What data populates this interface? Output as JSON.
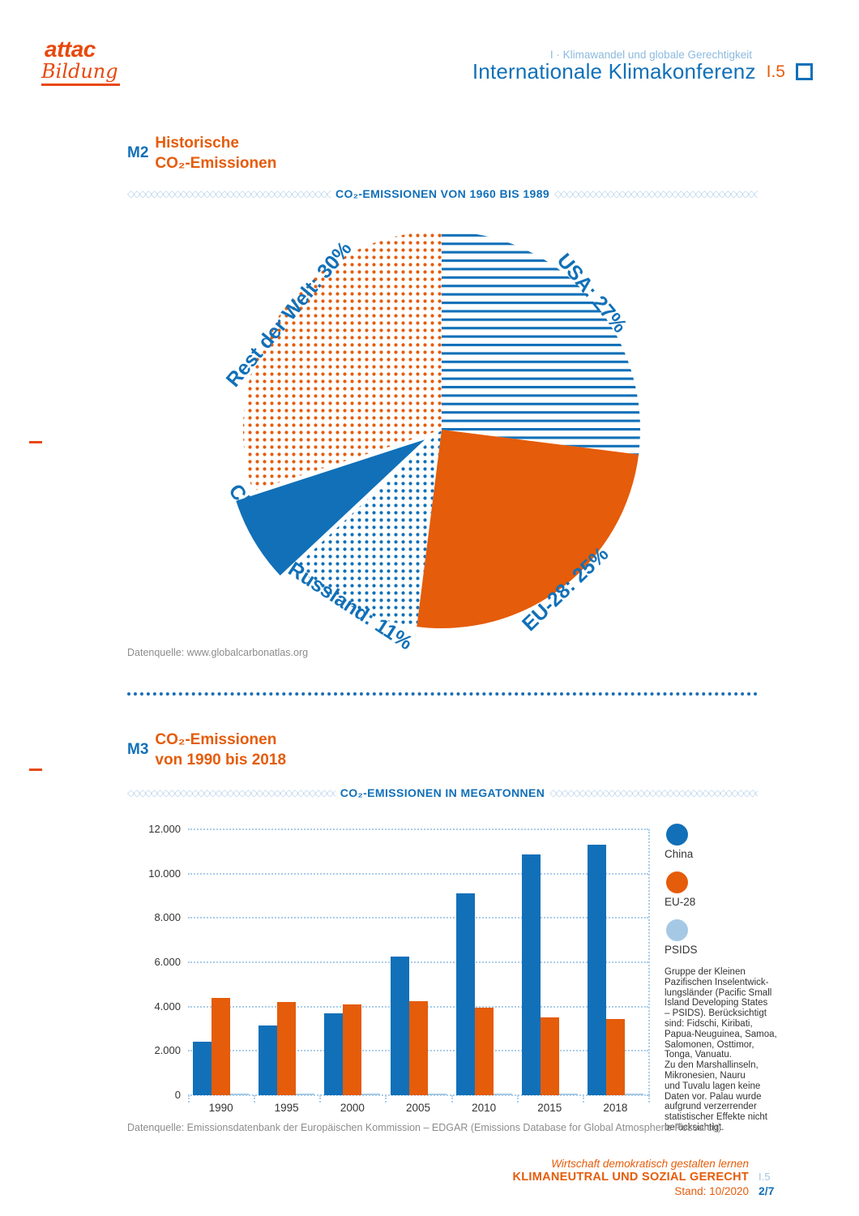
{
  "logo": {
    "top": "attac",
    "bottom": "Bildung"
  },
  "header": {
    "kicker": "I · Klimawandel und globale Gerechtigkeit",
    "title": "Internationale Klimakonferenz",
    "code": "I.5"
  },
  "m2": {
    "tag": "M2",
    "line1": "Historische",
    "line2": "CO₂-Emissionen"
  },
  "m3": {
    "tag": "M3",
    "line1": "CO₂-Emissionen",
    "line2": "von 1990 bis 2018"
  },
  "colors": {
    "blue": "#1170b8",
    "orange": "#e55c0a",
    "light_blue": "#a5c9e5"
  },
  "legend": {
    "items": [
      {
        "name": "China",
        "color": "#1170b8"
      },
      {
        "name": "EU-28",
        "color": "#e55c0a"
      },
      {
        "name": "PSIDS",
        "color": "#a5c9e5"
      }
    ],
    "note": "Gruppe der Kleinen\nPazifischen Inselentwick-\nlungsländer (Pacific Small\nIsland Developing States\n– PSIDS). Berücksichtigt\nsind: Fidschi, Kiribati,\nPapua-Neuguinea, Samoa,\nSalomonen, Osttimor,\nTonga, Vanuatu.\nZu den Marshallinseln,\nMikronesien, Nauru\nund Tuvalu lagen keine\nDaten vor. Palau wurde\naufgrund verzerrender\nstatistischer Effekte nicht\nberücksichtigt."
  },
  "footer": {
    "tagline": "Wirtschaft demokratisch gestalten lernen",
    "series": "KLIMANEUTRAL UND SOZIAL GERECHT",
    "code": "I.5",
    "stand": "Stand: 10/2020",
    "page": "2/7"
  },
  "chart_data": [
    {
      "type": "pie",
      "title": "CO₂-EMISSIONEN VON 1960 BIS 1989",
      "source": "Datenquelle: www.globalcarbonatlas.org",
      "slices": [
        {
          "name": "USA",
          "label": "USA: 27%",
          "value": 27,
          "pattern": "blue-hlines"
        },
        {
          "name": "EU-28",
          "label": "EU-28: 25%",
          "value": 25,
          "pattern": "solid-orange"
        },
        {
          "name": "Russland",
          "label": "Russland: 11%",
          "value": 11,
          "pattern": "blue-dots"
        },
        {
          "name": "China",
          "label": "China: 7%",
          "value": 7,
          "pattern": "solid-blue",
          "exploded": true
        },
        {
          "name": "Rest der Welt",
          "label": "Rest der Welt: 30%",
          "value": 30,
          "pattern": "orange-dots"
        }
      ]
    },
    {
      "type": "bar",
      "title": "CO₂-EMISSIONEN IN MEGATONNEN",
      "source": "Datenquelle: Emissionsdatenbank der Europäischen Kommission – EDGAR (Emissions Database for Global Atmospheric Research)",
      "categories": [
        "1990",
        "1995",
        "2000",
        "2005",
        "2010",
        "2015",
        "2018"
      ],
      "series": [
        {
          "name": "China",
          "color": "#1170b8",
          "values": [
            2400,
            3150,
            3700,
            6250,
            9100,
            10850,
            11300
          ]
        },
        {
          "name": "EU-28",
          "color": "#e55c0a",
          "values": [
            4400,
            4200,
            4100,
            4250,
            3950,
            3500,
            3450
          ]
        },
        {
          "name": "PSIDS",
          "color": "#a5c9e5",
          "values": [
            0,
            0,
            0,
            0,
            0,
            0,
            0
          ]
        }
      ],
      "ylabel": "Megatonnen",
      "ylim": [
        0,
        12000
      ],
      "ytick_step": 2000,
      "yticks_labels": [
        "0",
        "2.000",
        "4.000",
        "6.000",
        "8.000",
        "10.000",
        "12.000"
      ],
      "grid": "dotted",
      "legend_position": "right"
    }
  ]
}
